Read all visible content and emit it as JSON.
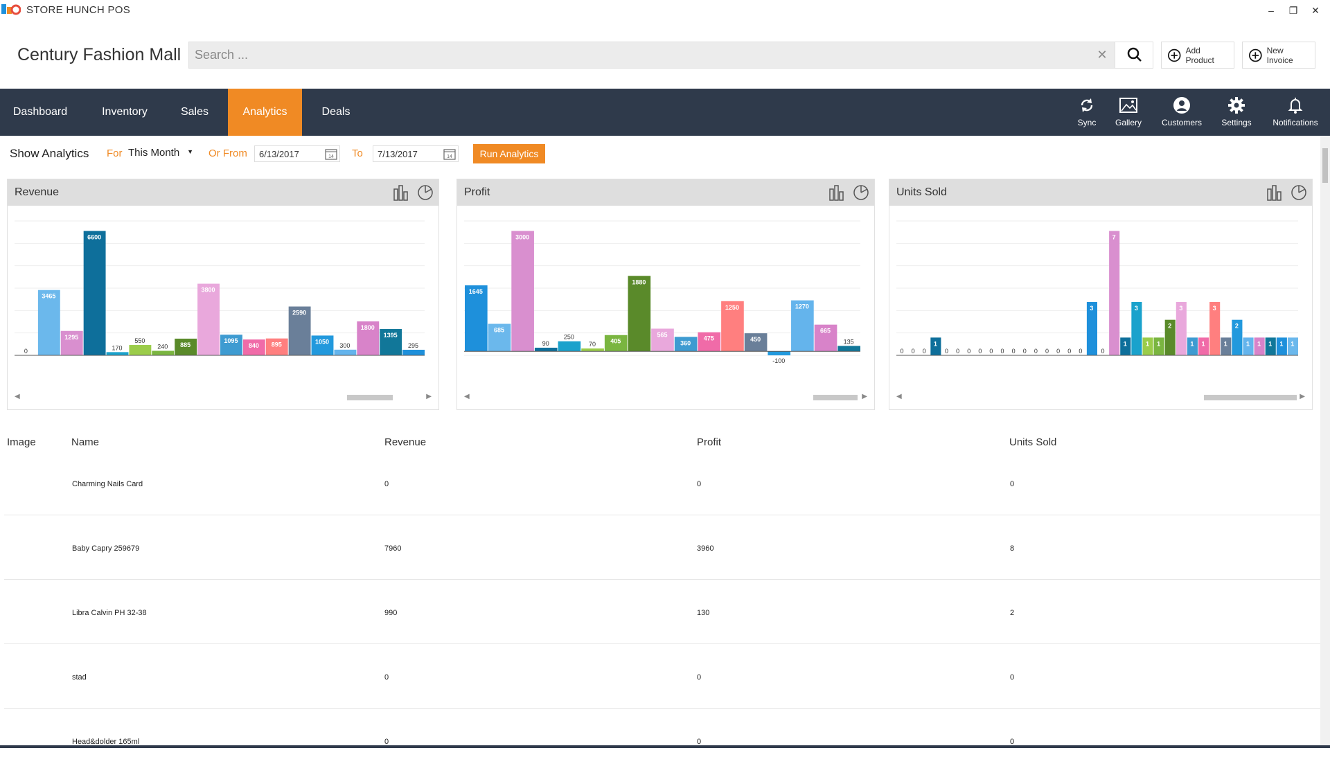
{
  "window": {
    "title": "STORE HUNCH POS",
    "minimize": "–",
    "restore": "❐",
    "close": "✕"
  },
  "header": {
    "store_name": "Century Fashion Mall",
    "search_placeholder": "Search ...",
    "clear_label": "✕",
    "add_product_label": "Add Product",
    "new_invoice_label": "New Invoice"
  },
  "nav": {
    "tabs": [
      {
        "label": "Dashboard"
      },
      {
        "label": "Inventory"
      },
      {
        "label": "Sales"
      },
      {
        "label": "Analytics",
        "active": true
      },
      {
        "label": "Deals"
      }
    ],
    "tools": [
      {
        "label": "Sync",
        "icon": "sync-icon"
      },
      {
        "label": "Gallery",
        "icon": "gallery-icon"
      },
      {
        "label": "Customers",
        "icon": "user-icon"
      },
      {
        "label": "Settings",
        "icon": "gear-icon"
      },
      {
        "label": "Notifications",
        "icon": "bell-icon"
      }
    ]
  },
  "filters": {
    "show_label": "Show Analytics",
    "for_label": "For",
    "period_value": "This Month",
    "or_from_label": "Or From",
    "from_date": "6/13/2017",
    "to_label": "To",
    "to_date": "7/13/2017",
    "run_label": "Run Analytics"
  },
  "colors": {
    "accent": "#f08a24",
    "nav_bg": "#2f3a4b",
    "bar_palette": [
      "#1e90db",
      "#6bb8ec",
      "#d98fcf",
      "#0e6f9b",
      "#1aa2cc",
      "#9bcc4a",
      "#7ab540",
      "#5a8a2a",
      "#e9a8dc",
      "#3e9bd1",
      "#f06ba8",
      "#ff7f7f",
      "#6a7f99",
      "#2299dd",
      "#64b4ec",
      "#d883c9",
      "#117799"
    ]
  },
  "charts": {
    "revenue": {
      "title": "Revenue",
      "chart_data": {
        "type": "bar",
        "values": [
          0,
          3465,
          1295,
          6600,
          170,
          550,
          240,
          885,
          3800,
          1095,
          840,
          895,
          2590,
          1050,
          300,
          1800,
          1395,
          295
        ]
      }
    },
    "profit": {
      "title": "Profit",
      "chart_data": {
        "type": "bar",
        "values": [
          1645,
          685,
          3000,
          90,
          250,
          70,
          405,
          1880,
          565,
          360,
          475,
          1250,
          450,
          -100,
          1270,
          665,
          135
        ]
      }
    },
    "units": {
      "title": "Units Sold",
      "chart_data": {
        "type": "bar",
        "values": [
          0,
          0,
          0,
          1,
          0,
          0,
          0,
          0,
          0,
          0,
          0,
          0,
          0,
          0,
          0,
          0,
          0,
          3,
          0,
          7,
          1,
          3,
          1,
          1,
          2,
          3,
          1,
          1,
          3,
          1,
          2,
          1,
          1,
          1,
          1,
          1
        ]
      }
    }
  },
  "table": {
    "headers": {
      "image": "Image",
      "name": "Name",
      "revenue": "Revenue",
      "profit": "Profit",
      "units": "Units Sold"
    },
    "rows": [
      {
        "name": "Charming Nails Card",
        "revenue": "0",
        "profit": "0",
        "units": "0"
      },
      {
        "name": "Baby Capry 259679",
        "revenue": "7960",
        "profit": "3960",
        "units": "8"
      },
      {
        "name": "Libra Calvin PH 32-38",
        "revenue": "990",
        "profit": "130",
        "units": "2"
      },
      {
        "name": "stad",
        "revenue": "0",
        "profit": "0",
        "units": "0"
      },
      {
        "name": "Head&dolder 165ml",
        "revenue": "0",
        "profit": "0",
        "units": "0"
      }
    ]
  }
}
